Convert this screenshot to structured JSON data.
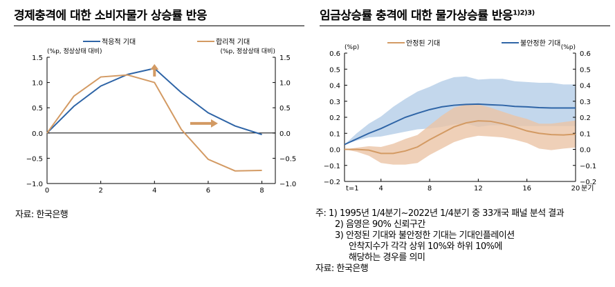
{
  "chart_data": [
    {
      "type": "line",
      "title": "경제충격에 대한 소비자물가 상승률 반응",
      "unit_left": "(%p, 정상상태 대비)",
      "unit_right": "(%p, 정상상태 대비)",
      "x": [
        0,
        1,
        2,
        3,
        4,
        5,
        6,
        7,
        8
      ],
      "xticks": [
        "0",
        "2",
        "4",
        "6",
        "8"
      ],
      "xlim": [
        0,
        8.5
      ],
      "ylim": [
        -1.0,
        1.5
      ],
      "yticks": [
        "1.5",
        "1.0",
        "0.5",
        "0.0",
        "−0.5",
        "−1.0"
      ],
      "legend": "top",
      "series": [
        {
          "name": "적응적 기대",
          "color": "#2e64a6",
          "values": [
            0,
            0.53,
            0.93,
            1.16,
            1.28,
            0.8,
            0.4,
            0.14,
            -0.03
          ]
        },
        {
          "name": "합리적 기대",
          "color": "#d39a63",
          "values": [
            0,
            0.73,
            1.11,
            1.15,
            1.0,
            0.07,
            -0.52,
            -0.75,
            -0.74
          ]
        }
      ],
      "annotations": [
        "up-arrow",
        "right-arrow"
      ]
    },
    {
      "type": "area",
      "title": "임금상승률 충격에 대한 물가상승률 반응",
      "title_sup": "1)2)3)",
      "unit_left": "(%p)",
      "unit_right": "(%p)",
      "x": [
        1,
        2,
        3,
        4,
        5,
        6,
        7,
        8,
        9,
        10,
        11,
        12,
        13,
        14,
        15,
        16,
        17,
        18,
        19,
        20
      ],
      "xticks": [
        {
          "v": 1,
          "l": "t=1"
        },
        {
          "v": 4,
          "l": "4"
        },
        {
          "v": 8,
          "l": "8"
        },
        {
          "v": 12,
          "l": "12"
        },
        {
          "v": 16,
          "l": "16"
        },
        {
          "v": 20,
          "l": "20"
        }
      ],
      "xunit": "분기",
      "ylim": [
        -0.2,
        0.6
      ],
      "yticks": [
        "0.6",
        "0.5",
        "0.4",
        "0.3",
        "0.2",
        "0.1",
        "0.0",
        "−0.1",
        "−0.2"
      ],
      "legend": "top",
      "series": [
        {
          "name": "안정된 기대",
          "color": "#d39a63",
          "band_color": "#ebc4a6",
          "values": [
            0,
            0,
            -0.005,
            -0.025,
            -0.025,
            -0.01,
            0.015,
            0.06,
            0.1,
            0.14,
            0.165,
            0.178,
            0.175,
            0.16,
            0.14,
            0.115,
            0.1,
            0.092,
            0.09,
            0.095
          ],
          "upper": [
            0,
            0.01,
            0.02,
            0.015,
            0.035,
            0.065,
            0.09,
            0.15,
            0.21,
            0.26,
            0.28,
            0.28,
            0.26,
            0.235,
            0.21,
            0.19,
            0.16,
            0.16,
            0.17,
            0.18
          ],
          "lower": [
            0,
            -0.015,
            -0.04,
            -0.085,
            -0.095,
            -0.095,
            -0.085,
            -0.035,
            0.005,
            0.045,
            0.07,
            0.085,
            0.08,
            0.075,
            0.06,
            0.04,
            0.005,
            -0.005,
            0.005,
            0.012
          ]
        },
        {
          "name": "불안정한 기대",
          "color": "#2e64a6",
          "band_color": "#bcd3ea",
          "values": [
            0.03,
            0.065,
            0.1,
            0.13,
            0.165,
            0.2,
            0.225,
            0.248,
            0.265,
            0.275,
            0.28,
            0.282,
            0.278,
            0.275,
            0.268,
            0.265,
            0.26,
            0.258,
            0.258,
            0.258
          ],
          "upper": [
            0.03,
            0.1,
            0.16,
            0.205,
            0.265,
            0.315,
            0.36,
            0.39,
            0.425,
            0.45,
            0.455,
            0.435,
            0.44,
            0.44,
            0.425,
            0.42,
            0.415,
            0.415,
            0.405,
            0.405
          ],
          "lower": [
            0.03,
            0.055,
            0.075,
            0.08,
            0.095,
            0.11,
            0.125,
            0.13,
            0.14,
            0.155,
            0.16,
            0.14,
            0.15,
            0.15,
            0.145,
            0.145,
            0.145,
            0.145,
            0.145,
            0.145
          ]
        }
      ]
    }
  ],
  "left_source": "자료:  한국은행",
  "notes": [
    "주:  1)  1995년 1/4분기~2022년 1/4분기 중 33개국 패널 분석 결과",
    "2)  음영은 90%  신뢰구간",
    "3)  안정된 기대와  불안정한 기대는 기대인플레이션",
    "안착지수가 각각 상위  10%와  하위  10%에",
    "해당하는 경우를 의미"
  ],
  "right_source": "자료:  한국은행"
}
